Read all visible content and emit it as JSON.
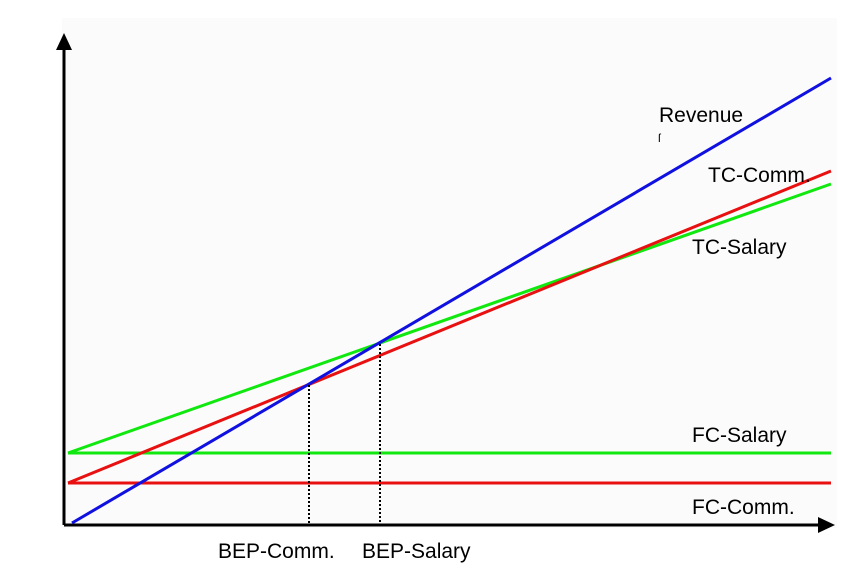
{
  "diagram": {
    "colors": {
      "revenue": "#1010e0",
      "commission": "#e81010",
      "salary": "#10e810",
      "axes": "#000000",
      "plot_background": "#fbfbfb"
    },
    "labels": {
      "revenue": "Revenue",
      "tc_comm": "TC-Comm.",
      "tc_salary": "TC-Salary",
      "fc_salary": "FC-Salary",
      "fc_comm": "FC-Comm.",
      "bep_comm": "BEP-Comm.",
      "bep_salary": "BEP-Salary"
    }
  }
}
